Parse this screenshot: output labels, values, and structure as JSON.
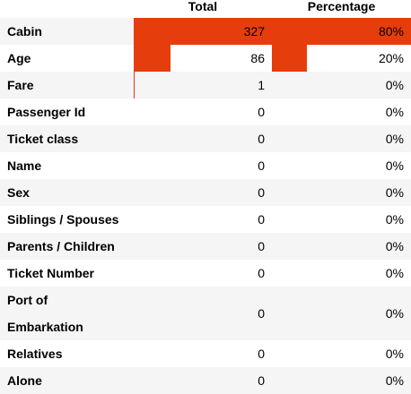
{
  "table": {
    "headers": [
      "",
      "Total",
      "Percentage"
    ],
    "bar_color": "#e63d0c",
    "rows": [
      {
        "label": "Cabin",
        "total": "327",
        "percentage": "80%",
        "total_value": 327,
        "percentage_value": 80
      },
      {
        "label": "Age",
        "total": "86",
        "percentage": "20%",
        "total_value": 86,
        "percentage_value": 20
      },
      {
        "label": "Fare",
        "total": "1",
        "percentage": "0%",
        "total_value": 1,
        "percentage_value": 0
      },
      {
        "label": "Passenger Id",
        "total": "0",
        "percentage": "0%",
        "total_value": 0,
        "percentage_value": 0
      },
      {
        "label": "Ticket class",
        "total": "0",
        "percentage": "0%",
        "total_value": 0,
        "percentage_value": 0
      },
      {
        "label": "Name",
        "total": "0",
        "percentage": "0%",
        "total_value": 0,
        "percentage_value": 0
      },
      {
        "label": "Sex",
        "total": "0",
        "percentage": "0%",
        "total_value": 0,
        "percentage_value": 0
      },
      {
        "label": "Siblings / Spouses",
        "total": "0",
        "percentage": "0%",
        "total_value": 0,
        "percentage_value": 0
      },
      {
        "label": "Parents / Children",
        "total": "0",
        "percentage": "0%",
        "total_value": 0,
        "percentage_value": 0
      },
      {
        "label": "Ticket Number",
        "total": "0",
        "percentage": "0%",
        "total_value": 0,
        "percentage_value": 0
      },
      {
        "label": "Port of Embarkation",
        "total": "0",
        "percentage": "0%",
        "total_value": 0,
        "percentage_value": 0
      },
      {
        "label": "Relatives",
        "total": "0",
        "percentage": "0%",
        "total_value": 0,
        "percentage_value": 0
      },
      {
        "label": "Alone",
        "total": "0",
        "percentage": "0%",
        "total_value": 0,
        "percentage_value": 0
      }
    ]
  }
}
